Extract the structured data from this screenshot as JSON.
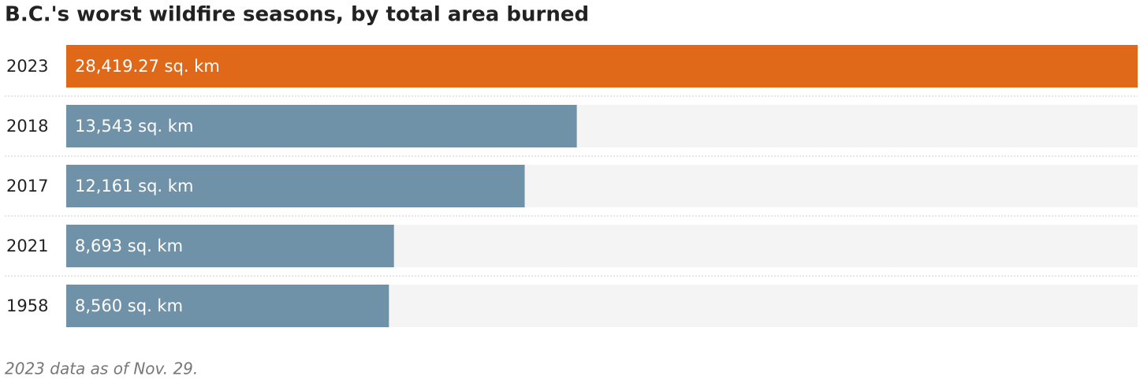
{
  "chart_data": {
    "type": "bar",
    "orientation": "horizontal",
    "title": "B.C.'s worst wildfire seasons, by total area burned",
    "categories": [
      "2023",
      "2018",
      "2017",
      "2021",
      "1958"
    ],
    "values": [
      28419.27,
      13543,
      12161,
      8693,
      8560
    ],
    "value_labels": [
      "28,419.27 sq. km",
      "13,543 sq. km",
      "12,161 sq. km",
      "8,693 sq. km",
      "8,560 sq. km"
    ],
    "colors": [
      "#e06819",
      "#6f92a8",
      "#6f92a8",
      "#6f92a8",
      "#6f92a8"
    ],
    "xlim": [
      0,
      28419.27
    ],
    "note": "2023 data as of Nov. 29."
  }
}
